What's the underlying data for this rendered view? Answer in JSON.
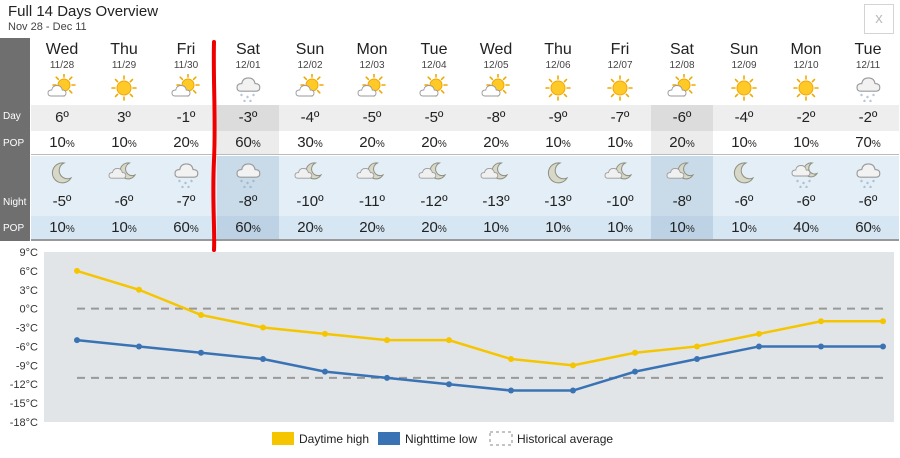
{
  "header": {
    "title": "Full 14 Days Overview",
    "date_range": "Nov 28 - Dec 11",
    "close_label": "x"
  },
  "row_labels": {
    "day": "Day",
    "pop": "POP",
    "night": "Night",
    "night_pop": "POP"
  },
  "days": [
    {
      "name": "Wed",
      "date": "11/28",
      "day_icon": "sun-cloud-icon",
      "day_temp": "6º",
      "day_pop": "10",
      "night_icon": "moon-icon",
      "night_temp": "-5º",
      "night_pop": "10"
    },
    {
      "name": "Thu",
      "date": "11/29",
      "day_icon": "sun-icon",
      "day_temp": "3º",
      "day_pop": "10",
      "night_icon": "moon-cloud-icon",
      "night_temp": "-6º",
      "night_pop": "10"
    },
    {
      "name": "Fri",
      "date": "11/30",
      "day_icon": "sun-cloud-icon",
      "day_temp": "-1º",
      "day_pop": "20",
      "night_icon": "snow-cloud-icon",
      "night_temp": "-7º",
      "night_pop": "60"
    },
    {
      "name": "Sat",
      "date": "12/01",
      "day_icon": "snow-cloud-icon",
      "day_temp": "-3º",
      "day_pop": "60",
      "night_icon": "snow-cloud-icon",
      "night_temp": "-8º",
      "night_pop": "60"
    },
    {
      "name": "Sun",
      "date": "12/02",
      "day_icon": "sun-cloud-icon",
      "day_temp": "-4º",
      "day_pop": "30",
      "night_icon": "moon-cloud-icon",
      "night_temp": "-10º",
      "night_pop": "20"
    },
    {
      "name": "Mon",
      "date": "12/03",
      "day_icon": "sun-cloud-icon",
      "day_temp": "-5º",
      "day_pop": "20",
      "night_icon": "moon-cloud-icon",
      "night_temp": "-11º",
      "night_pop": "20"
    },
    {
      "name": "Tue",
      "date": "12/04",
      "day_icon": "sun-cloud-icon",
      "day_temp": "-5º",
      "day_pop": "20",
      "night_icon": "moon-cloud-icon",
      "night_temp": "-12º",
      "night_pop": "20"
    },
    {
      "name": "Wed",
      "date": "12/05",
      "day_icon": "sun-cloud-icon",
      "day_temp": "-8º",
      "day_pop": "20",
      "night_icon": "moon-cloud-icon",
      "night_temp": "-13º",
      "night_pop": "10"
    },
    {
      "name": "Thu",
      "date": "12/06",
      "day_icon": "sun-icon",
      "day_temp": "-9º",
      "day_pop": "10",
      "night_icon": "moon-icon",
      "night_temp": "-13º",
      "night_pop": "10"
    },
    {
      "name": "Fri",
      "date": "12/07",
      "day_icon": "sun-icon",
      "day_temp": "-7º",
      "day_pop": "10",
      "night_icon": "moon-cloud-icon",
      "night_temp": "-10º",
      "night_pop": "10"
    },
    {
      "name": "Sat",
      "date": "12/08",
      "day_icon": "sun-cloud-icon",
      "day_temp": "-6º",
      "day_pop": "20",
      "night_icon": "moon-cloud-icon",
      "night_temp": "-8º",
      "night_pop": "10"
    },
    {
      "name": "Sun",
      "date": "12/09",
      "day_icon": "sun-icon",
      "day_temp": "-4º",
      "day_pop": "10",
      "night_icon": "moon-icon",
      "night_temp": "-6º",
      "night_pop": "10"
    },
    {
      "name": "Mon",
      "date": "12/10",
      "day_icon": "sun-icon",
      "day_temp": "-2º",
      "day_pop": "10",
      "night_icon": "moon-snow-icon",
      "night_temp": "-6º",
      "night_pop": "40"
    },
    {
      "name": "Tue",
      "date": "12/11",
      "day_icon": "snow-cloud-icon",
      "day_temp": "-2º",
      "day_pop": "70",
      "night_icon": "snow-cloud-icon",
      "night_temp": "-6º",
      "night_pop": "60"
    }
  ],
  "pop_unit": "%",
  "colors": {
    "daytime_line": "#f5c500",
    "nighttime_line": "#3a73b4",
    "historical_line": "#999999",
    "label_column": "#6f6f6f",
    "chart_bg": "#e2e5e8",
    "marker_line": "#ee0000"
  },
  "chart_data": {
    "type": "line",
    "x": [
      "11/28",
      "11/29",
      "11/30",
      "12/01",
      "12/02",
      "12/03",
      "12/04",
      "12/05",
      "12/06",
      "12/07",
      "12/08",
      "12/09",
      "12/10",
      "12/11"
    ],
    "series": [
      {
        "name": "Daytime high",
        "values": [
          6,
          3,
          -1,
          -3,
          -4,
          -5,
          -5,
          -8,
          -9,
          -7,
          -6,
          -4,
          -2,
          -2
        ]
      },
      {
        "name": "Nighttime low",
        "values": [
          -5,
          -6,
          -7,
          -8,
          -10,
          -11,
          -12,
          -13,
          -13,
          -10,
          -8,
          -6,
          -6,
          -6
        ]
      },
      {
        "name": "Historical average",
        "values": [
          0,
          0,
          0,
          0,
          0,
          0,
          0,
          0,
          0,
          0,
          0,
          0,
          0,
          0
        ],
        "low_values": [
          -11,
          -11,
          -11,
          -11,
          -11,
          -11,
          -11,
          -11,
          -11,
          -11,
          -11,
          -11,
          -11,
          -11
        ]
      }
    ],
    "yticks": [
      "9°C",
      "6°C",
      "3°C",
      "0°C",
      "-3°C",
      "-6°C",
      "-9°C",
      "-12°C",
      "-15°C",
      "-18°C"
    ],
    "ylim": [
      -18,
      9
    ],
    "legend": [
      "Daytime high",
      "Nighttime low",
      "Historical average"
    ],
    "legend_position": "bottom-center"
  }
}
